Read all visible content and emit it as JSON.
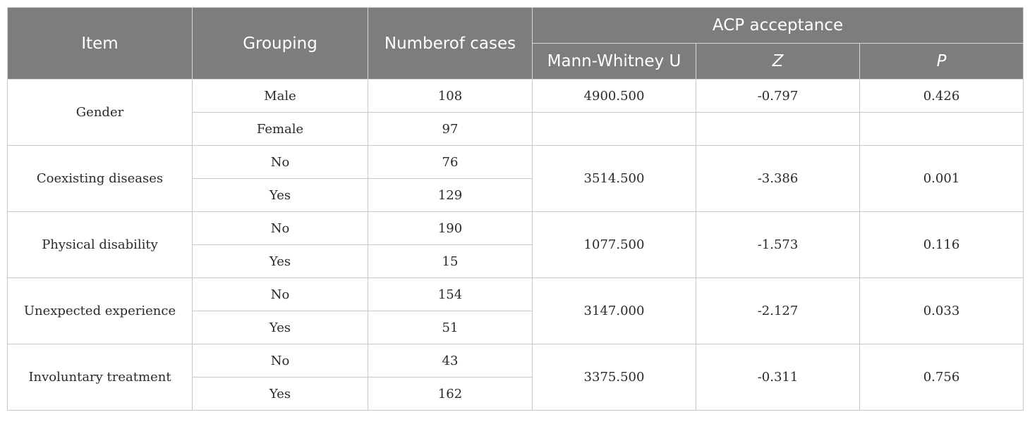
{
  "table": {
    "headers": {
      "item": "Item",
      "grouping": "Grouping",
      "cases": "Numberof cases",
      "acp": "ACP acceptance",
      "u": "Mann-Whitney U",
      "z": "Z",
      "p": "P"
    },
    "items": [
      {
        "label": "Gender",
        "groups": [
          {
            "name": "Male",
            "cases": "108"
          },
          {
            "name": "Female",
            "cases": "97"
          }
        ],
        "u": "4900.500",
        "z": "-0.797",
        "p": "0.426"
      },
      {
        "label": "Coexisting diseases",
        "groups": [
          {
            "name": "No",
            "cases": "76"
          },
          {
            "name": "Yes",
            "cases": "129"
          }
        ],
        "u": "3514.500",
        "z": "-3.386",
        "p": "0.001"
      },
      {
        "label": "Physical disability",
        "groups": [
          {
            "name": "No",
            "cases": "190"
          },
          {
            "name": "Yes",
            "cases": "15"
          }
        ],
        "u": "1077.500",
        "z": "-1.573",
        "p": "0.116"
      },
      {
        "label": "Unexpected experience",
        "groups": [
          {
            "name": "No",
            "cases": "154"
          },
          {
            "name": "Yes",
            "cases": "51"
          }
        ],
        "u": "3147.000",
        "z": "-2.127",
        "p": "0.033"
      },
      {
        "label": "Involuntary treatment",
        "groups": [
          {
            "name": "No",
            "cases": "43"
          },
          {
            "name": "Yes",
            "cases": "162"
          }
        ],
        "u": "3375.500",
        "z": "-0.311",
        "p": "0.756"
      }
    ]
  }
}
